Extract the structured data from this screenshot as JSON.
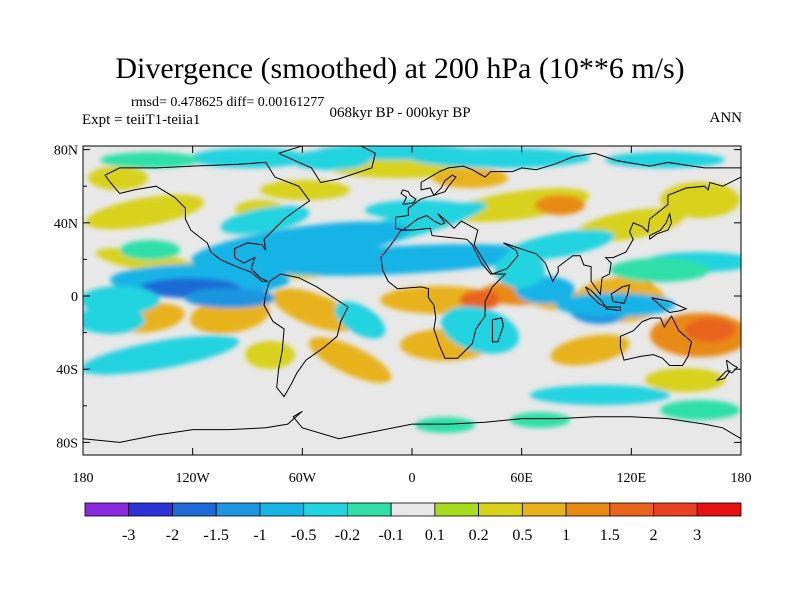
{
  "figure": {
    "title": "Divergence (smoothed) at 200 hPa (10**6 m/s)",
    "stats_line": "rmsd= 0.478625 diff= 0.00161277",
    "experiment": "Expt = teiiT1-teiia1",
    "period": "068kyr BP - 000kyr BP",
    "season": "ANN"
  },
  "axes": {
    "lat_ticks": [
      {
        "label": "80N",
        "value": 80
      },
      {
        "label": "40N",
        "value": 40
      },
      {
        "label": "0",
        "value": 0
      },
      {
        "label": "40S",
        "value": -40
      },
      {
        "label": "80S",
        "value": -80
      }
    ],
    "lon_ticks": [
      {
        "label": "180",
        "value": -180
      },
      {
        "label": "120W",
        "value": -120
      },
      {
        "label": "60W",
        "value": -60
      },
      {
        "label": "0",
        "value": 0
      },
      {
        "label": "60E",
        "value": 60
      },
      {
        "label": "120E",
        "value": 120
      },
      {
        "label": "180",
        "value": 180
      }
    ]
  },
  "colorbar": {
    "labels": [
      "-3",
      "-2",
      "-1.5",
      "-1",
      "-0.5",
      "-0.2",
      "-0.1",
      "0.1",
      "0.2",
      "0.5",
      "1",
      "1.5",
      "2",
      "3"
    ],
    "colors": [
      "#8a2be2",
      "#2b32d6",
      "#1e6ad6",
      "#1e95e0",
      "#17b4e6",
      "#22d3e0",
      "#2ee0a8",
      "#e8e8e8",
      "#a8dc1e",
      "#d8d21a",
      "#e8b21c",
      "#e88a12",
      "#e8641a",
      "#e84020",
      "#e61010"
    ]
  }
}
